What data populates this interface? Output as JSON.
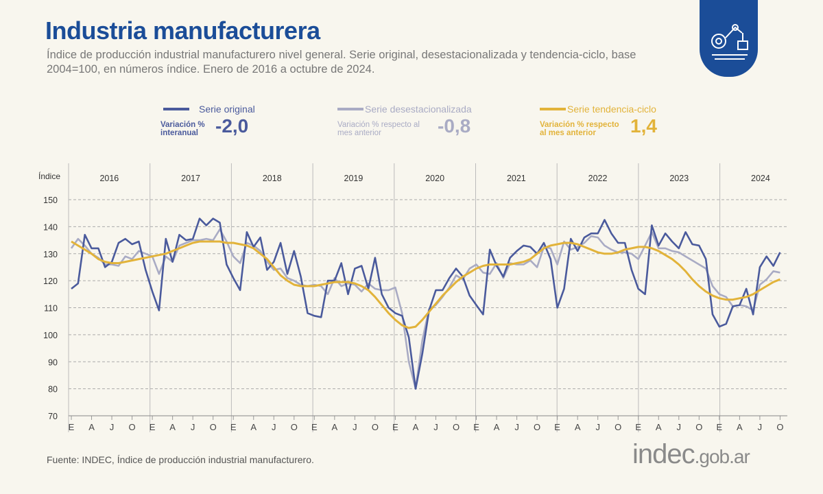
{
  "header": {
    "title": "Industria manufacturera",
    "subtitle": "Índice de producción industrial manufacturero nivel general. Serie original, desestacionalizada y tendencia-ciclo, base 2004=100, en números índice. Enero de 2016 a octubre de 2024."
  },
  "legend": [
    {
      "name": "Serie original",
      "metric": "Variación % interanual",
      "value": "-2,0",
      "color": "#4a5a9c"
    },
    {
      "name": "Serie desestacionalizada",
      "metric": "Variación % respecto al mes anterior",
      "value": "-0,8",
      "color": "#a9abc4"
    },
    {
      "name": "Serie tendencia-ciclo",
      "metric": "Variación % respecto al mes anterior",
      "value": "1,4",
      "color": "#e2b33a"
    }
  ],
  "footer": {
    "source": "Fuente: INDEC, Índice de producción industrial manufacturero.",
    "logo_text": "indec.gob.ar"
  },
  "icons": {
    "badge": "industrial-robot-icon"
  },
  "chart_data": {
    "type": "line",
    "ylabel": "Índice",
    "ylim": [
      70,
      150
    ],
    "yticks": [
      70,
      80,
      90,
      100,
      110,
      120,
      130,
      140,
      150
    ],
    "years": [
      "2016",
      "2017",
      "2018",
      "2019",
      "2020",
      "2021",
      "2022",
      "2023",
      "2024"
    ],
    "month_tick_labels": [
      "E",
      "A",
      "J",
      "O"
    ],
    "x_range": "Enero 2016 - Octubre 2024 (monthly)",
    "grid": "horizontal dashed",
    "series": [
      {
        "name": "Serie original",
        "color": "#4a5a9c",
        "values": [
          117,
          119,
          137,
          132,
          132,
          125,
          127,
          134,
          135.5,
          133.5,
          134.5,
          124,
          116,
          109,
          135.5,
          127,
          137,
          135,
          135.5,
          143,
          140.5,
          143,
          141.5,
          126,
          121,
          116.5,
          138,
          132.5,
          136,
          124,
          127,
          134,
          122.5,
          131,
          121.5,
          108,
          107,
          106.5,
          120,
          120,
          126.5,
          115,
          124.5,
          125.5,
          117,
          128.5,
          115,
          110,
          108,
          107,
          99,
          80,
          93,
          109,
          116.5,
          116.5,
          121,
          124.5,
          121.5,
          114.5,
          111,
          107.5,
          131.5,
          125.5,
          121.5,
          128.5,
          131,
          133,
          132.5,
          130,
          134,
          128,
          110,
          117,
          135.5,
          131,
          136,
          137.5,
          137.5,
          142.5,
          137.5,
          134,
          134,
          124,
          117,
          115,
          140.5,
          133,
          137.5,
          134.5,
          132,
          138,
          133.5,
          133,
          128,
          107.5,
          103,
          104,
          110.5,
          111,
          117,
          107.5,
          125,
          129,
          125.5,
          130.5
        ]
      },
      {
        "name": "Serie desestacionalizada",
        "color": "#a9abc4",
        "values": [
          132,
          135.5,
          133,
          130,
          128.5,
          126,
          126,
          125.5,
          129,
          128,
          131,
          130,
          129,
          122.5,
          129,
          127,
          133,
          134,
          135,
          135,
          135.5,
          135,
          139,
          134.5,
          129,
          126.5,
          134,
          133,
          131,
          127,
          124,
          124.5,
          121,
          120,
          118.5,
          118,
          118.5,
          118,
          115,
          121,
          118,
          119,
          118.5,
          116,
          119,
          117,
          116.5,
          116.5,
          117.5,
          108,
          90,
          80,
          98,
          109.5,
          111,
          114,
          117.5,
          122,
          120.5,
          124.5,
          126,
          123,
          122.5,
          126.5,
          121,
          126.5,
          126,
          126,
          127.5,
          125,
          132.5,
          132,
          126,
          134.5,
          131.5,
          132.5,
          134,
          136.5,
          136,
          133,
          131.5,
          130.5,
          130.5,
          130,
          128,
          133,
          138,
          132,
          132,
          131,
          130.5,
          129,
          127.5,
          126,
          124.5,
          118,
          115,
          114,
          110.5,
          111,
          110.5,
          109,
          118.5,
          120.5,
          123.5,
          123
        ]
      },
      {
        "name": "Serie tendencia-ciclo",
        "color": "#e2b33a",
        "values": [
          134.5,
          133,
          131.5,
          130,
          128,
          127,
          126.5,
          126.5,
          127,
          127.5,
          128,
          128.5,
          129,
          129.5,
          130,
          131,
          132,
          133,
          134,
          134.5,
          134.5,
          134.5,
          134.5,
          134,
          134,
          133.5,
          133,
          132,
          130,
          128,
          125,
          122,
          120,
          118.5,
          118,
          118,
          118,
          118.5,
          119,
          119.5,
          119.5,
          119.5,
          119,
          118,
          116.5,
          114,
          111,
          108,
          105.5,
          103.5,
          102.5,
          103,
          105.5,
          108.5,
          111.5,
          114.5,
          117,
          119.5,
          121.5,
          123,
          124.5,
          125.5,
          126,
          126,
          126,
          126,
          126.5,
          127,
          128,
          130,
          132,
          133,
          133.5,
          134,
          134,
          133.5,
          132.5,
          131.5,
          130.5,
          130,
          130,
          130.5,
          131.5,
          132,
          132.5,
          132.5,
          132,
          131,
          129.5,
          128,
          126,
          123.5,
          120.5,
          118,
          116,
          114.5,
          113.5,
          113,
          113,
          113.5,
          114,
          115,
          116.5,
          118,
          119.5,
          120.5
        ]
      }
    ]
  }
}
